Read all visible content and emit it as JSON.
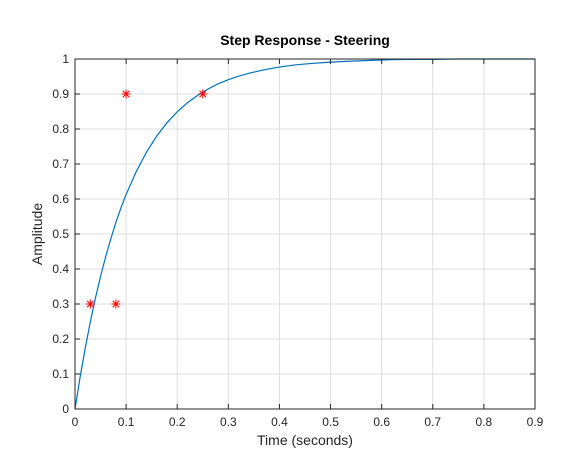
{
  "chart_data": {
    "type": "line",
    "title": "Step Response - Steering",
    "xlabel": "Time (seconds)",
    "ylabel": "Amplitude",
    "xlim": [
      0,
      0.9
    ],
    "ylim": [
      0,
      1
    ],
    "xticks": [
      "0",
      "0.1",
      "0.2",
      "0.3",
      "0.4",
      "0.5",
      "0.6",
      "0.7",
      "0.8",
      "0.9"
    ],
    "yticks": [
      "0",
      "0.1",
      "0.2",
      "0.3",
      "0.4",
      "0.5",
      "0.6",
      "0.7",
      "0.8",
      "0.9",
      "1"
    ],
    "grid": true,
    "series": [
      {
        "kind": "line",
        "color": "#0072BD",
        "x": [
          0,
          0.01,
          0.02,
          0.03,
          0.04,
          0.05,
          0.06,
          0.07,
          0.08,
          0.09,
          0.1,
          0.12,
          0.14,
          0.16,
          0.18,
          0.2,
          0.22,
          0.24,
          0.26,
          0.28,
          0.3,
          0.32,
          0.34,
          0.36,
          0.38,
          0.4,
          0.43,
          0.46,
          0.5,
          0.54,
          0.58,
          0.62,
          0.66,
          0.7,
          0.75,
          0.8,
          0.85,
          0.9
        ],
        "y": [
          0,
          0.091,
          0.174,
          0.249,
          0.317,
          0.379,
          0.435,
          0.486,
          0.533,
          0.575,
          0.613,
          0.679,
          0.734,
          0.78,
          0.818,
          0.849,
          0.875,
          0.896,
          0.914,
          0.929,
          0.941,
          0.951,
          0.959,
          0.966,
          0.972,
          0.977,
          0.983,
          0.987,
          0.991,
          0.994,
          0.996,
          0.998,
          0.999,
          0.999,
          1.0,
          1.0,
          1.0,
          1.0
        ]
      },
      {
        "kind": "scatter",
        "marker": "*",
        "color": "#FF0000",
        "x": [
          0.03,
          0.08,
          0.1,
          0.25
        ],
        "y": [
          0.3,
          0.3,
          0.9,
          0.9
        ]
      }
    ]
  }
}
